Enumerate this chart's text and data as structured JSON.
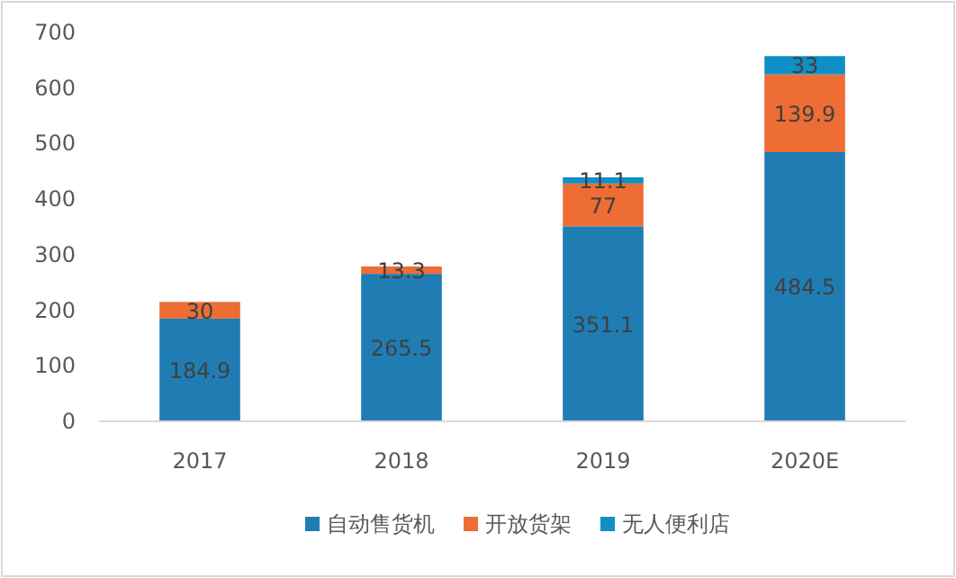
{
  "chart_data": {
    "type": "bar",
    "stacked": true,
    "categories": [
      "2017",
      "2018",
      "2019",
      "2020E"
    ],
    "series": [
      {
        "name": "自动售货机",
        "color": "#1f7db4",
        "values": [
          184.9,
          265.5,
          351.1,
          484.5
        ]
      },
      {
        "name": "开放货架",
        "color": "#ed6d35",
        "values": [
          30,
          13.3,
          77,
          139.9
        ]
      },
      {
        "name": "无人便利店",
        "color": "#0f8fc6",
        "values": [
          null,
          null,
          11.1,
          33
        ]
      }
    ],
    "ylim": [
      0,
      700
    ],
    "yticks": [
      0,
      100,
      200,
      300,
      400,
      500,
      600,
      700
    ],
    "data_labels": true,
    "grid": false,
    "legend": "bottom"
  }
}
